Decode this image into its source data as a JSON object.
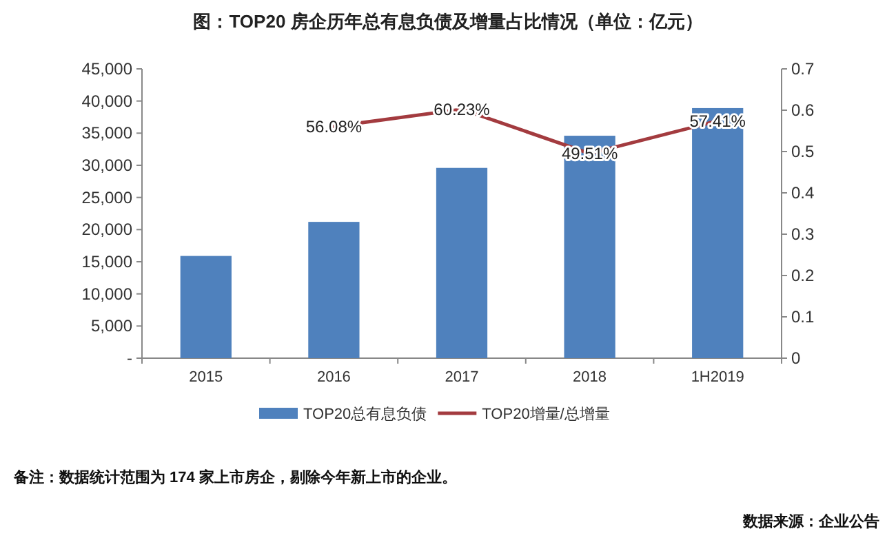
{
  "chart_data": {
    "type": "bar",
    "title": "图：TOP20 房企历年总有息负债及增量占比情况（单位：亿元）",
    "categories": [
      "2015",
      "2016",
      "2017",
      "2018",
      "1H2019"
    ],
    "series": [
      {
        "name": "TOP20总有息负债",
        "color": "#4f81bd",
        "values": [
          15900,
          21200,
          29600,
          34600,
          38900
        ]
      },
      {
        "name": "TOP20增量/总增量",
        "type": "line",
        "axis": "y2",
        "color": "#a33b3f",
        "values": [
          null,
          0.5608,
          0.6023,
          0.4951,
          0.5741
        ],
        "value_labels": [
          null,
          "56.08%",
          "60.23%",
          "49.51%",
          "57.41%"
        ]
      }
    ],
    "ylim": [
      0,
      45000
    ],
    "yticks": [
      {
        "value": 0,
        "label": "-"
      },
      {
        "value": 5000,
        "label": "5,000"
      },
      {
        "value": 10000,
        "label": "10,000"
      },
      {
        "value": 15000,
        "label": "15,000"
      },
      {
        "value": 20000,
        "label": "20,000"
      },
      {
        "value": 25000,
        "label": "25,000"
      },
      {
        "value": 30000,
        "label": "30,000"
      },
      {
        "value": 35000,
        "label": "35,000"
      },
      {
        "value": 40000,
        "label": "40,000"
      },
      {
        "value": 45000,
        "label": "45,000"
      }
    ],
    "y2lim": [
      0,
      0.7
    ],
    "y2ticks": [
      0,
      0.1,
      0.2,
      0.3,
      0.4,
      0.5,
      0.6,
      0.7
    ],
    "legend": "bottom",
    "grid": false,
    "annotations": [
      "备注：数据统计范围为 174 家上市房企，剔除今年新上市的企业。",
      "数据来源：企业公告"
    ]
  }
}
